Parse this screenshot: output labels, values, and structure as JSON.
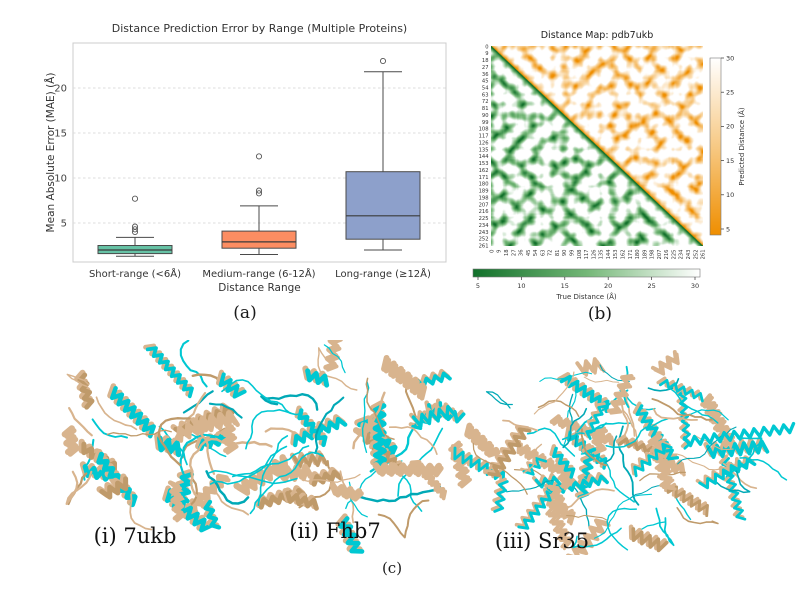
{
  "captions": {
    "a": "(a)",
    "b": "(b)",
    "c": "(c)"
  },
  "chart_data": [
    {
      "type": "box",
      "title": "Distance Prediction Error by Range (Multiple Proteins)",
      "xlabel": "Distance Range",
      "ylabel": "Mean Absolute Error (MAE) (Å)",
      "yticks": [
        5,
        10,
        15,
        20
      ],
      "ylim": [
        0.6,
        25
      ],
      "grid": "horizontal-dashed",
      "categories": [
        "Short-range (<6Å)",
        "Medium-range (6-12Å)",
        "Long-range (≥12Å)"
      ],
      "series": [
        {
          "name": "Short-range (<6Å)",
          "color": "#66c2a5",
          "whislo": 1.3,
          "q1": 1.6,
          "med": 2.0,
          "q3": 2.5,
          "whishi": 3.4,
          "outliers": [
            4.0,
            4.3,
            4.6,
            7.7
          ]
        },
        {
          "name": "Medium-range (6-12Å)",
          "color": "#fc8d62",
          "whislo": 1.5,
          "q1": 2.2,
          "med": 2.9,
          "q3": 4.1,
          "whishi": 6.9,
          "outliers": [
            8.3,
            8.6,
            12.4
          ]
        },
        {
          "name": "Long-range (≥12Å)",
          "color": "#8da0cb",
          "whislo": 2.0,
          "q1": 3.2,
          "med": 5.8,
          "q3": 10.7,
          "whishi": 21.8,
          "outliers": [
            23.0
          ]
        }
      ]
    },
    {
      "type": "heatmap",
      "title": "Distance Map: pdb7ukb",
      "n_residues": 262,
      "axis_ticks": [
        0,
        9,
        18,
        27,
        36,
        45,
        54,
        63,
        72,
        81,
        90,
        99,
        108,
        117,
        126,
        135,
        144,
        153,
        162,
        171,
        180,
        189,
        198,
        207,
        216,
        225,
        234,
        243,
        252,
        261
      ],
      "value_range": [
        5,
        30
      ],
      "lower_triangle": {
        "label": "True Distance (Å)",
        "colorbar_ticks": [
          5,
          10,
          15,
          20,
          25,
          30
        ],
        "color_dark": "#11702a",
        "color_mid": "#74b777",
        "color_light": "#ffffff"
      },
      "upper_triangle": {
        "label": "Predicted Distance (Å)",
        "colorbar_ticks": [
          5,
          10,
          15,
          20,
          25,
          30
        ],
        "color_dark": "#ef8e00",
        "color_mid": "#f7c984",
        "color_light": "#ffffff"
      }
    }
  ],
  "proteins": {
    "colors": {
      "experimental": "#00c8d2",
      "predicted": "#d8b48e",
      "experimental_dark": "#00a9b6",
      "predicted_dark": "#bf9a6a"
    },
    "items": [
      {
        "label": "(i) 7ukb"
      },
      {
        "label": "(ii) Fhb7"
      },
      {
        "label": "(iii) Sr35"
      }
    ]
  }
}
